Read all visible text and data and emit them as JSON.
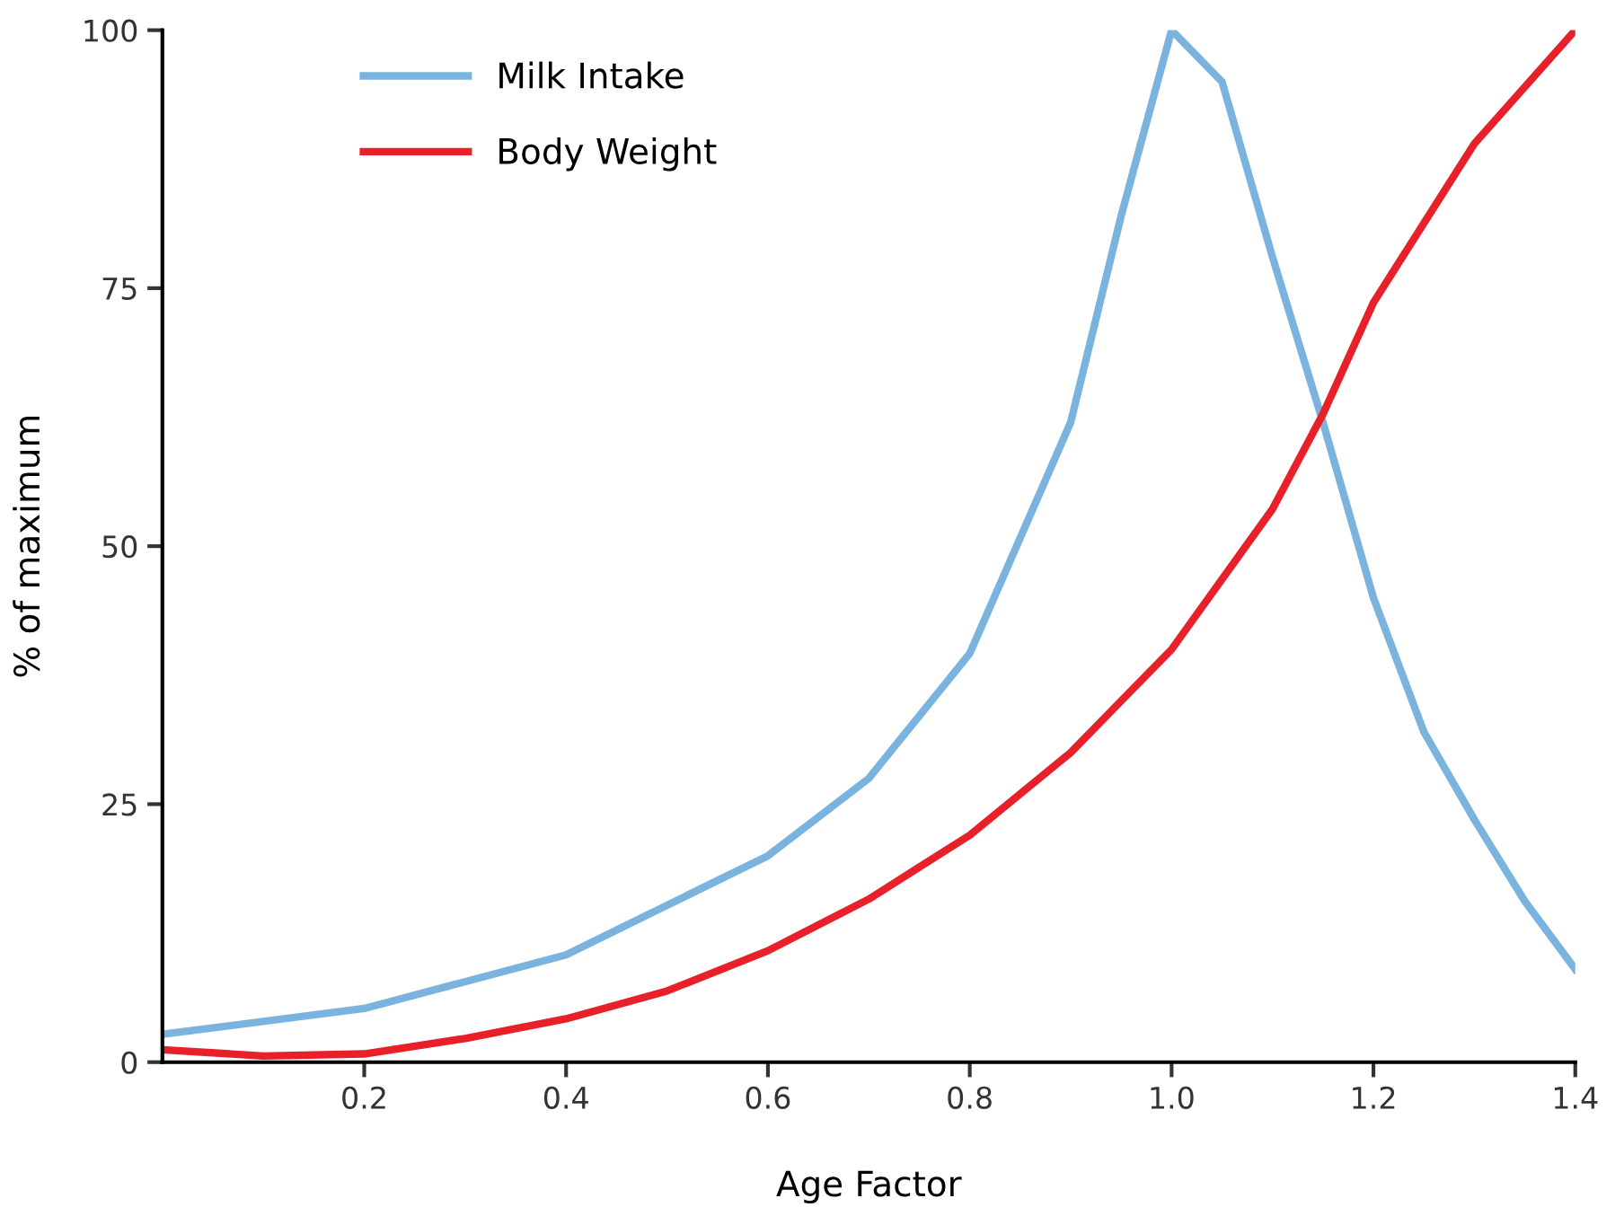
{
  "chart_data": {
    "type": "line",
    "xlabel": "Age Factor",
    "ylabel": "% of maximum",
    "xlim": [
      0,
      1.4
    ],
    "xticks": [
      0.2,
      0.4,
      0.6,
      0.8,
      {
        "value": 1.0,
        "label": "1.0"
      },
      1.2,
      1.4
    ],
    "ylim": [
      0,
      100
    ],
    "yticks": [
      0,
      25,
      50,
      75,
      100
    ],
    "grid": false,
    "legend": "top left",
    "marker": "none",
    "line_style": "solid",
    "series": [
      {
        "name": "Milk Intake",
        "color": "#7ab3de",
        "x": [
          0,
          0.2,
          0.4,
          0.6,
          0.7,
          0.8,
          0.9,
          0.95,
          1.0,
          1.05,
          1.1,
          1.15,
          1.2,
          1.25,
          1.3,
          1.35,
          1.4
        ],
        "values": [
          2.7,
          5.2,
          10.4,
          20,
          27.5,
          39.6,
          62,
          82,
          100,
          95,
          78,
          62,
          45,
          32,
          23.5,
          15.6,
          9
        ]
      },
      {
        "name": "Body Weight",
        "color": "#e8202a",
        "x": [
          0,
          0.1,
          0.2,
          0.3,
          0.4,
          0.5,
          0.6,
          0.7,
          0.8,
          0.9,
          1.0,
          1.1,
          1.15,
          1.2,
          1.3,
          1.4
        ],
        "values": [
          1.2,
          0.6,
          0.8,
          2.3,
          4.2,
          6.9,
          10.8,
          15.8,
          22,
          30,
          40,
          53.6,
          62.8,
          73.6,
          89,
          100
        ]
      }
    ]
  }
}
